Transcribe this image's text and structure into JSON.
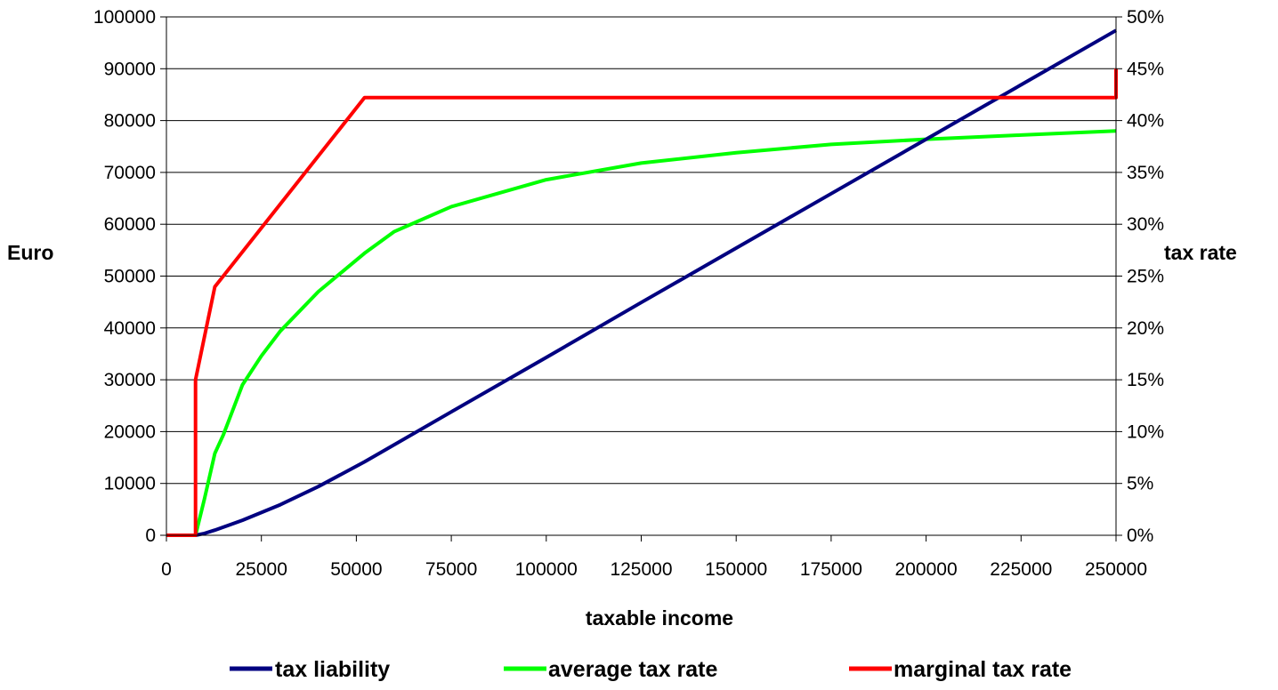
{
  "chart_data": {
    "type": "line",
    "title": "",
    "xlabel": "taxable income",
    "ylabel_left": "Euro",
    "ylabel_right": "tax rate",
    "xlim": [
      0,
      250000
    ],
    "ylim_left": [
      0,
      100000
    ],
    "ylim_right": [
      0,
      0.5
    ],
    "x_ticks": [
      "0",
      "25000",
      "50000",
      "75000",
      "100000",
      "125000",
      "150000",
      "175000",
      "200000",
      "225000",
      "250000"
    ],
    "y_left_ticks": [
      "0",
      "10000",
      "20000",
      "30000",
      "40000",
      "50000",
      "60000",
      "70000",
      "80000",
      "90000",
      "100000"
    ],
    "y_right_ticks": [
      "0%",
      "5%",
      "10%",
      "15%",
      "20%",
      "25%",
      "30%",
      "35%",
      "40%",
      "45%",
      "50%"
    ],
    "grid": "horizontal",
    "legend_position": "bottom",
    "series": [
      {
        "name": "tax liability",
        "axis": "left",
        "color": "#000080",
        "x": [
          7664,
          10000,
          12739,
          20000,
          30000,
          40000,
          52151,
          75000,
          100000,
          125000,
          150000,
          175000,
          200000,
          225000,
          250000
        ],
        "y": [
          0,
          355,
          1000,
          2900,
          5900,
          9400,
          14170,
          23800,
          34300,
          44900,
          55400,
          65900,
          76400,
          86900,
          97400
        ]
      },
      {
        "name": "average tax rate",
        "axis": "right",
        "color": "#00ff00",
        "x": [
          7664,
          10000,
          12739,
          15000,
          20000,
          25000,
          30000,
          40000,
          52151,
          60000,
          75000,
          100000,
          125000,
          150000,
          175000,
          200000,
          225000,
          250000
        ],
        "y": [
          0,
          0.035,
          0.079,
          0.097,
          0.145,
          0.173,
          0.197,
          0.235,
          0.272,
          0.293,
          0.317,
          0.343,
          0.359,
          0.369,
          0.377,
          0.382,
          0.386,
          0.39
        ]
      },
      {
        "name": "marginal tax rate",
        "axis": "right",
        "color": "#ff0000",
        "x": [
          0,
          7664,
          7664,
          12739,
          52151,
          250000,
          250000
        ],
        "y": [
          0,
          0,
          0.15,
          0.2397,
          0.4221,
          0.4221,
          0.45
        ]
      }
    ]
  }
}
